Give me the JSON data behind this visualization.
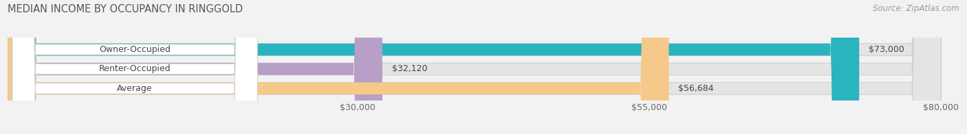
{
  "title": "MEDIAN INCOME BY OCCUPANCY IN RINGGOLD",
  "source": "Source: ZipAtlas.com",
  "categories": [
    "Owner-Occupied",
    "Renter-Occupied",
    "Average"
  ],
  "values": [
    73000,
    32120,
    56684
  ],
  "labels": [
    "$73,000",
    "$32,120",
    "$56,684"
  ],
  "bar_colors": [
    "#29b4c0",
    "#b89fc8",
    "#f5c98a"
  ],
  "xmin": 0,
  "xmax": 80000,
  "xticks": [
    30000,
    55000,
    80000
  ],
  "xticklabels": [
    "$30,000",
    "$55,000",
    "$80,000"
  ],
  "title_fontsize": 10.5,
  "source_fontsize": 8.5,
  "bar_label_fontsize": 9,
  "category_fontsize": 9,
  "tick_fontsize": 9,
  "background_color": "#f2f2f2",
  "bar_background_color": "#e4e4e4",
  "bar_height": 0.62,
  "bar_gap": 0.38
}
